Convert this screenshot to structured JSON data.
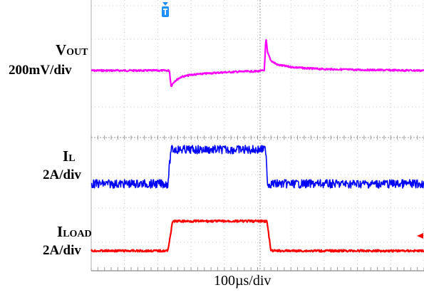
{
  "chart_data": {
    "type": "line",
    "title": "",
    "xlabel": "100µs/div",
    "x_unit": "µs",
    "x_range": [
      0,
      1000
    ],
    "grid": true,
    "colors": {
      "vout": "#ff00ff",
      "il": "#0000ff",
      "iload": "#ff0000",
      "trigger_marker": "#1e90ff",
      "level_marker": "#ff0000",
      "grid": "#c8c8c8"
    },
    "series": [
      {
        "name": "VOUT",
        "label_main": "V",
        "label_sub": "OUT",
        "scale": "200mV/div",
        "color": "#ff00ff",
        "points_x": [
          0,
          235,
          240,
          250,
          270,
          300,
          350,
          400,
          450,
          500,
          520,
          525,
          530,
          540,
          560,
          600,
          650,
          700,
          800,
          1000
        ],
        "points_y": [
          0,
          0,
          -0.22,
          -0.15,
          -0.09,
          -0.06,
          -0.04,
          -0.025,
          -0.015,
          -0.01,
          0,
          0.45,
          0.25,
          0.14,
          0.08,
          0.05,
          0.03,
          0.02,
          0.01,
          0
        ]
      },
      {
        "name": "IL",
        "label_main": "I",
        "label_sub": "L",
        "scale": "2A/div",
        "color": "#0000ff",
        "points_x": [
          0,
          230,
          240,
          520,
          525,
          530,
          1000
        ],
        "points_y": [
          0,
          0,
          1.6,
          1.6,
          1.6,
          0,
          0
        ]
      },
      {
        "name": "ILOAD",
        "label_main": "I",
        "label_sub": "LOAD",
        "scale": "2A/div",
        "color": "#ff0000",
        "points_x": [
          0,
          230,
          245,
          520,
          528,
          540,
          1000
        ],
        "points_y": [
          0,
          0,
          1.6,
          1.6,
          1.6,
          0,
          0
        ]
      }
    ]
  }
}
